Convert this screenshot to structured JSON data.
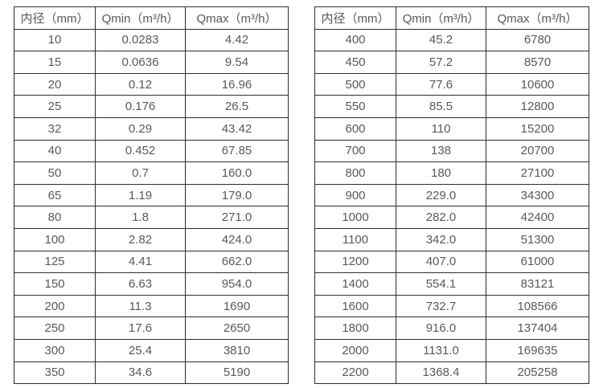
{
  "page": {
    "background": "#ffffff",
    "table_border_color": "#2e2e2e",
    "text_color": "#595959"
  },
  "tables": [
    {
      "name": "small-diameter-table",
      "headers": [
        "内径（mm）",
        "Qmin（m³/h）",
        "Qmax（m³/h）"
      ],
      "rows": [
        [
          "10",
          "0.0283",
          "4.42"
        ],
        [
          "15",
          "0.0636",
          "9.54"
        ],
        [
          "20",
          "0.12",
          "16.96"
        ],
        [
          "25",
          "0.176",
          "26.5"
        ],
        [
          "32",
          "0.29",
          "43.42"
        ],
        [
          "40",
          "0.452",
          "67.85"
        ],
        [
          "50",
          "0.7",
          "160.0"
        ],
        [
          "65",
          "1.19",
          "179.0"
        ],
        [
          "80",
          "1.8",
          "271.0"
        ],
        [
          "100",
          "2.82",
          "424.0"
        ],
        [
          "125",
          "4.41",
          "662.0"
        ],
        [
          "150",
          "6.63",
          "954.0"
        ],
        [
          "200",
          "11.3",
          "1690"
        ],
        [
          "250",
          "17.6",
          "2650"
        ],
        [
          "300",
          "25.4",
          "3810"
        ],
        [
          "350",
          "34.6",
          "5190"
        ]
      ]
    },
    {
      "name": "large-diameter-table",
      "headers": [
        "内径（mm）",
        "Qmin（m³/h）",
        "Qmax（m³/h）"
      ],
      "rows": [
        [
          "400",
          "45.2",
          "6780"
        ],
        [
          "450",
          "57.2",
          "8570"
        ],
        [
          "500",
          "77.6",
          "10600"
        ],
        [
          "550",
          "85.5",
          "12800"
        ],
        [
          "600",
          "110",
          "15200"
        ],
        [
          "700",
          "138",
          "20700"
        ],
        [
          "800",
          "180",
          "27100"
        ],
        [
          "900",
          "229.0",
          "34300"
        ],
        [
          "1000",
          "282.0",
          "42400"
        ],
        [
          "1100",
          "342.0",
          "51300"
        ],
        [
          "1200",
          "407.0",
          "61000"
        ],
        [
          "1400",
          "554.1",
          "83121"
        ],
        [
          "1600",
          "732.7",
          "108566"
        ],
        [
          "1800",
          "916.0",
          "137404"
        ],
        [
          "2000",
          "1131.0",
          "169635"
        ],
        [
          "2200",
          "1368.4",
          "205258"
        ]
      ]
    }
  ]
}
